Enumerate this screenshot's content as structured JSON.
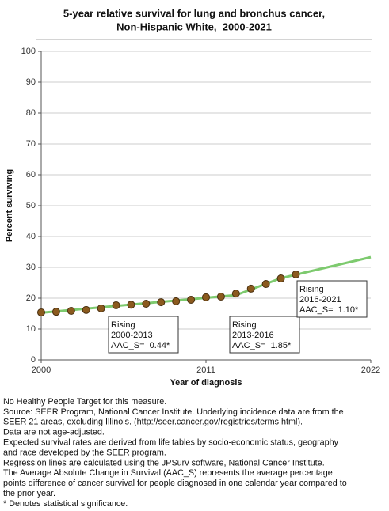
{
  "chart_data": {
    "type": "line",
    "title": [
      "5-year relative survival for lung and bronchus cancer,",
      "Non-Hispanic White,  2000-2021"
    ],
    "x_label": "Year of diagnosis",
    "y_label": "Percent surviving",
    "xlim": [
      2000,
      2022
    ],
    "xticks": [
      2000,
      2011,
      2022
    ],
    "ylim": [
      0,
      100
    ],
    "yticks": [
      0,
      10,
      20,
      30,
      40,
      50,
      60,
      70,
      80,
      90,
      100
    ],
    "grid": true,
    "series": [
      {
        "name": "Observed",
        "color": "#8b5a1e",
        "x": [
          2000,
          2001,
          2002,
          2003,
          2004,
          2005,
          2006,
          2007,
          2008,
          2009,
          2010,
          2011,
          2012,
          2013,
          2014,
          2015,
          2016,
          2017
        ],
        "values": [
          15.4,
          15.6,
          15.9,
          16.2,
          16.7,
          17.7,
          17.9,
          18.2,
          18.7,
          19.0,
          19.5,
          20.3,
          20.5,
          21.5,
          23.1,
          24.6,
          26.4,
          27.7
        ]
      },
      {
        "name": "Fitted",
        "color": "#7dca6e",
        "x": [
          2000,
          2013,
          2016,
          2022
        ],
        "values": [
          15.3,
          21.0,
          26.5,
          33.3
        ]
      }
    ],
    "annotations": [
      {
        "lines": [
          "Rising",
          "2000-2013",
          "AAC_S=  0.44*"
        ]
      },
      {
        "lines": [
          "Rising",
          "2013-2016",
          "AAC_S=  1.85*"
        ]
      },
      {
        "lines": [
          "Rising",
          "2016-2021",
          "AAC_S=  1.10*"
        ]
      }
    ]
  },
  "notes": [
    "No Healthy People Target for this measure.",
    "Source: SEER Program, National Cancer Institute. Underlying incidence data are from the",
    "SEER 21 areas, excluding Illinois. (http://seer.cancer.gov/registries/terms.html).",
    "Data are not age-adjusted.",
    "Expected survival rates are derived from life tables by socio-economic status, geography",
    "and race developed by the SEER program.",
    "Regression lines are calculated using the JPSurv software, National Cancer Institute.",
    "The Average Absolute Change in Survival (AAC_S) represents the average percentage",
    "points difference of cancer survival for people diagnosed in one calendar year compared to",
    "the prior year.",
    "* Denotes statistical significance."
  ]
}
